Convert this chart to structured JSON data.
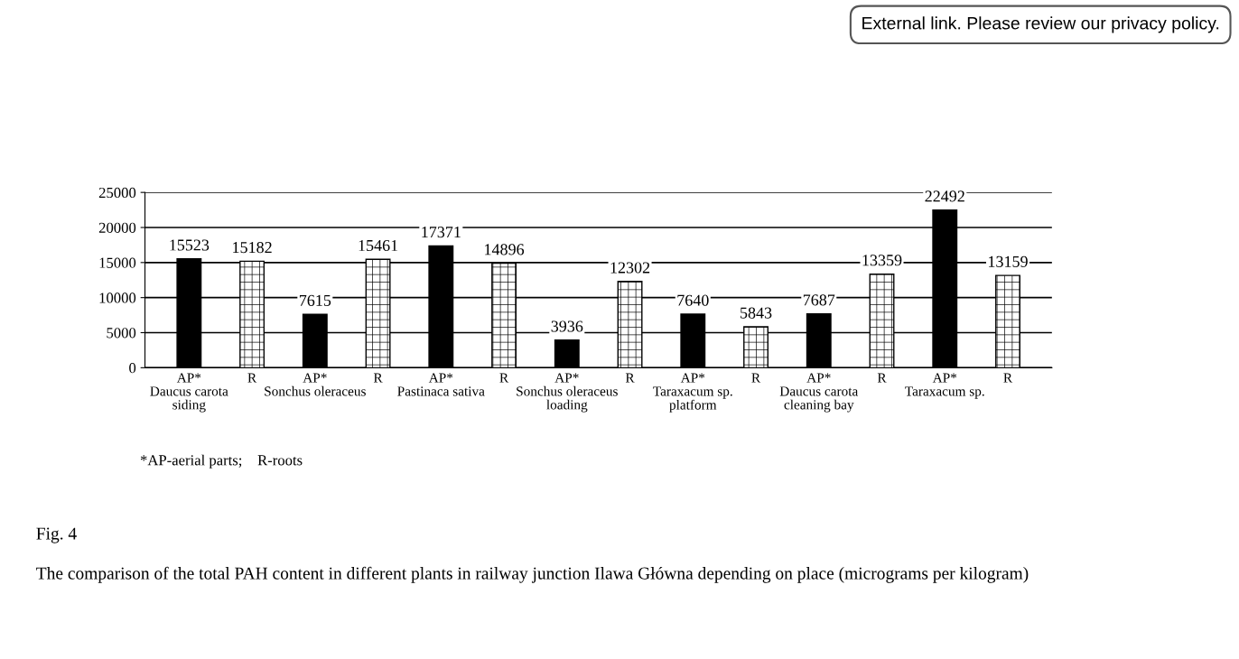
{
  "chart_data": {
    "type": "bar",
    "categories": [
      "AP*\nDaucus carota\nsiding",
      "R",
      "AP*\nSonchus oleraceus",
      "R",
      "AP*\nPastinaca sativa",
      "R",
      "AP*\nSonchus oleraceus\nloading",
      "R",
      "AP*\nTaraxacum sp.\nplatform",
      "R",
      "AP*\nDaucus carota\ncleaning bay",
      "R",
      "AP*\nTaraxacum sp.",
      "R"
    ],
    "values": [
      15523,
      15182,
      7615,
      15461,
      17371,
      14896,
      3936,
      12302,
      7640,
      5843,
      7687,
      13359,
      22492,
      13159
    ],
    "colors": [
      "#000000",
      "#ffffff",
      "#000000",
      "#ffffff",
      "#000000",
      "#ffffff",
      "#000000",
      "#ffffff",
      "#000000",
      "#ffffff",
      "#000000",
      "#ffffff",
      "#000000",
      "#ffffff"
    ],
    "ylim": [
      0,
      25000
    ],
    "yticks": [
      0,
      5000,
      10000,
      15000,
      20000,
      25000
    ],
    "grid": "y",
    "data_labels": true,
    "annotations": [
      "*AP-aerial parts;    R-roots",
      "Fig. 4",
      "The comparison of the total PAH content in different plants in railway junction Ilawa Główna depending on place (micrograms per kilogram)",
      "External link. Please review our privacy policy."
    ]
  }
}
